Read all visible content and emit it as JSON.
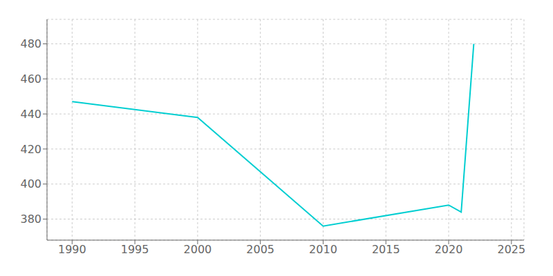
{
  "chart_data": {
    "type": "line",
    "x": [
      1990,
      2000,
      2010,
      2020,
      2021,
      2022
    ],
    "values": [
      447,
      438,
      376,
      388,
      384,
      480
    ],
    "color": "#00CED1",
    "xlim": [
      1988,
      2026
    ],
    "ylim": [
      368,
      494
    ],
    "xticks": [
      1990,
      1995,
      2000,
      2005,
      2010,
      2015,
      2020,
      2025
    ],
    "yticks": [
      380,
      400,
      420,
      440,
      460,
      480
    ],
    "grid": true
  }
}
